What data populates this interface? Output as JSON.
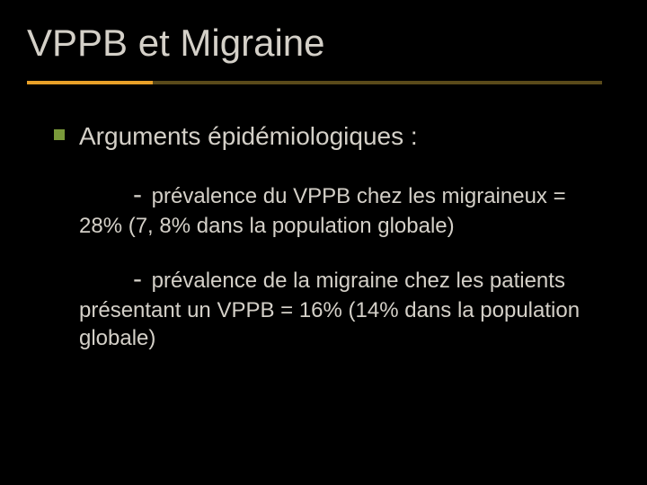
{
  "title": "VPPB et Migraine",
  "bullet": "Arguments épidémiologiques :",
  "para1": "prévalence du VPPB chez les migraineux = 28% (7, 8% dans la population globale)",
  "para2": "prévalence de la migraine chez les patients présentant un VPPB = 16% (14% dans la population globale)",
  "colors": {
    "background": "#000000",
    "text": "#d4d0c8",
    "divider_base": "#5a4a1a",
    "divider_accent": "#e8a028",
    "bullet": "#7a9a3a"
  },
  "fonts": {
    "title_size": 42,
    "bullet_size": 28,
    "body_size": 24,
    "dash_size": 30
  }
}
